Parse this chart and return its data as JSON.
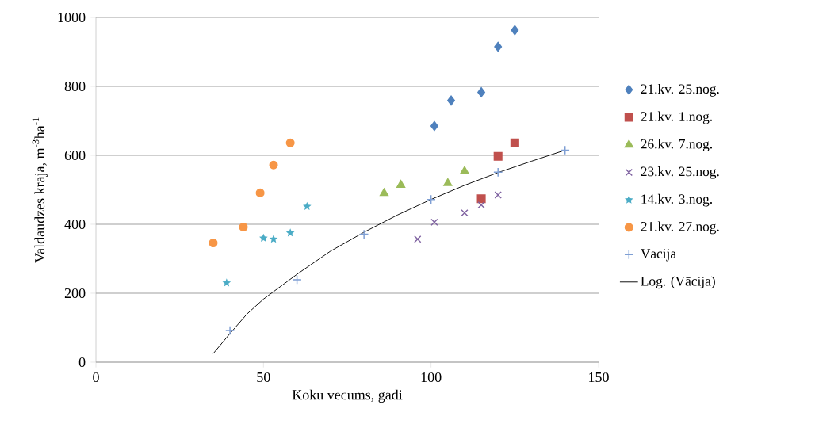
{
  "chart_data": {
    "type": "scatter",
    "xlabel": "Koku vecums, gadi",
    "ylabel": "Valdaudzes krāja, m$^{-3}$ha$^{-1}$",
    "xlim": [
      0,
      150
    ],
    "ylim": [
      0,
      1000
    ],
    "xticks": [
      0,
      50,
      100,
      150
    ],
    "yticks": [
      0,
      200,
      400,
      600,
      800,
      1000
    ],
    "grid": "y",
    "legend": "right",
    "series": [
      {
        "name": "21.kv. 25.nog.",
        "color": "#4f81bd",
        "marker": "diamond",
        "x": [
          101,
          106,
          115,
          120,
          125
        ],
        "values": [
          685,
          759,
          783,
          915,
          963
        ]
      },
      {
        "name": "21.kv. 1.nog.",
        "color": "#c0504d",
        "marker": "square",
        "x": [
          115,
          120,
          125
        ],
        "values": [
          474,
          597,
          636
        ]
      },
      {
        "name": "26.kv. 7.nog.",
        "color": "#9bbb59",
        "marker": "triangle",
        "x": [
          86,
          91,
          105,
          110
        ],
        "values": [
          490,
          514,
          519,
          554
        ]
      },
      {
        "name": "23.kv. 25.nog.",
        "color": "#8064a2",
        "marker": "cross",
        "x": [
          96,
          101,
          110,
          115,
          120
        ],
        "values": [
          357,
          406,
          433,
          456,
          485
        ]
      },
      {
        "name": "14.kv. 3.nog.",
        "color": "#4bacc6",
        "marker": "star",
        "x": [
          39,
          50,
          53,
          58,
          63
        ],
        "values": [
          230,
          360,
          357,
          375,
          452
        ]
      },
      {
        "name": "21.kv. 27.nog.",
        "color": "#f79646",
        "marker": "circle",
        "x": [
          35,
          44,
          49,
          53,
          58
        ],
        "values": [
          346,
          392,
          491,
          572,
          636
        ]
      },
      {
        "name": "Vācija",
        "color": "#7f9fd4",
        "marker": "plus",
        "x": [
          40,
          60,
          80,
          100,
          120,
          140
        ],
        "values": [
          92,
          239,
          371,
          472,
          551,
          615
        ]
      },
      {
        "name": "Log. (Vācija)",
        "type": "line",
        "color": "#000000",
        "marker": "none",
        "x": [
          35,
          40,
          45,
          50,
          60,
          70,
          80,
          90,
          100,
          110,
          120,
          130,
          140
        ],
        "values": [
          25,
          83,
          139,
          183,
          255,
          322,
          377,
          427,
          472,
          513,
          550,
          583,
          615
        ]
      }
    ]
  }
}
